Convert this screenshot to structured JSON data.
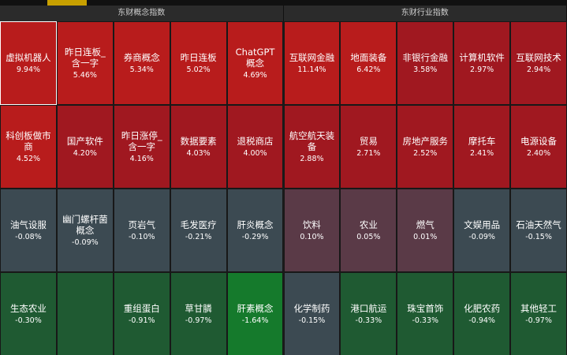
{
  "panels": [
    {
      "title": "东财概念指数",
      "tiles": [
        {
          "name": "虚拟机器人",
          "change": "9.94%"
        },
        {
          "name": "昨日连板_含一字",
          "change": "5.46%"
        },
        {
          "name": "券商概念",
          "change": "5.34%"
        },
        {
          "name": "昨日连板",
          "change": "5.02%"
        },
        {
          "name": "ChatGPT概念",
          "change": "4.69%"
        },
        {
          "name": "科创板做市商",
          "change": "4.52%"
        },
        {
          "name": "国产软件",
          "change": "4.20%"
        },
        {
          "name": "昨日涨停_含一字",
          "change": "4.16%"
        },
        {
          "name": "数据要素",
          "change": "4.03%"
        },
        {
          "name": "退税商店",
          "change": "4.00%"
        },
        {
          "name": "油气设服",
          "change": "-0.08%"
        },
        {
          "name": "幽门螺杆菌概念",
          "change": "-0.09%"
        },
        {
          "name": "页岩气",
          "change": "-0.10%"
        },
        {
          "name": "毛发医疗",
          "change": "-0.21%"
        },
        {
          "name": "肝炎概念",
          "change": "-0.29%"
        },
        {
          "name": "生态农业",
          "change": "-0.30%"
        },
        null,
        {
          "name": "重组蛋白",
          "change": "-0.91%"
        },
        {
          "name": "草甘膦",
          "change": "-0.97%"
        },
        {
          "name": "肝素概念",
          "change": "-1.64%"
        }
      ]
    },
    {
      "title": "东财行业指数",
      "tiles": [
        {
          "name": "互联网金融",
          "change": "11.14%"
        },
        {
          "name": "地面装备",
          "change": "6.42%"
        },
        {
          "name": "非银行金融",
          "change": "3.58%"
        },
        {
          "name": "计算机软件",
          "change": "2.97%"
        },
        {
          "name": "互联网技术",
          "change": "2.94%"
        },
        {
          "name": "航空航天装备",
          "change": "2.88%"
        },
        {
          "name": "贸易",
          "change": "2.71%"
        },
        {
          "name": "房地产服务",
          "change": "2.52%"
        },
        {
          "name": "摩托车",
          "change": "2.41%"
        },
        {
          "name": "电源设备",
          "change": "2.40%"
        },
        {
          "name": "饮料",
          "change": "0.10%"
        },
        {
          "name": "农业",
          "change": "0.05%"
        },
        {
          "name": "燃气",
          "change": "0.01%"
        },
        {
          "name": "文娱用品",
          "change": "-0.09%"
        },
        {
          "name": "石油天然气",
          "change": "-0.15%"
        },
        {
          "name": "化学制药",
          "change": "-0.15%"
        },
        {
          "name": "港口航运",
          "change": "-0.33%"
        },
        {
          "name": "珠宝首饰",
          "change": "-0.33%"
        },
        {
          "name": "化肥农药",
          "change": "-0.94%"
        },
        {
          "name": "其他轻工",
          "change": "-0.97%"
        }
      ]
    }
  ]
}
